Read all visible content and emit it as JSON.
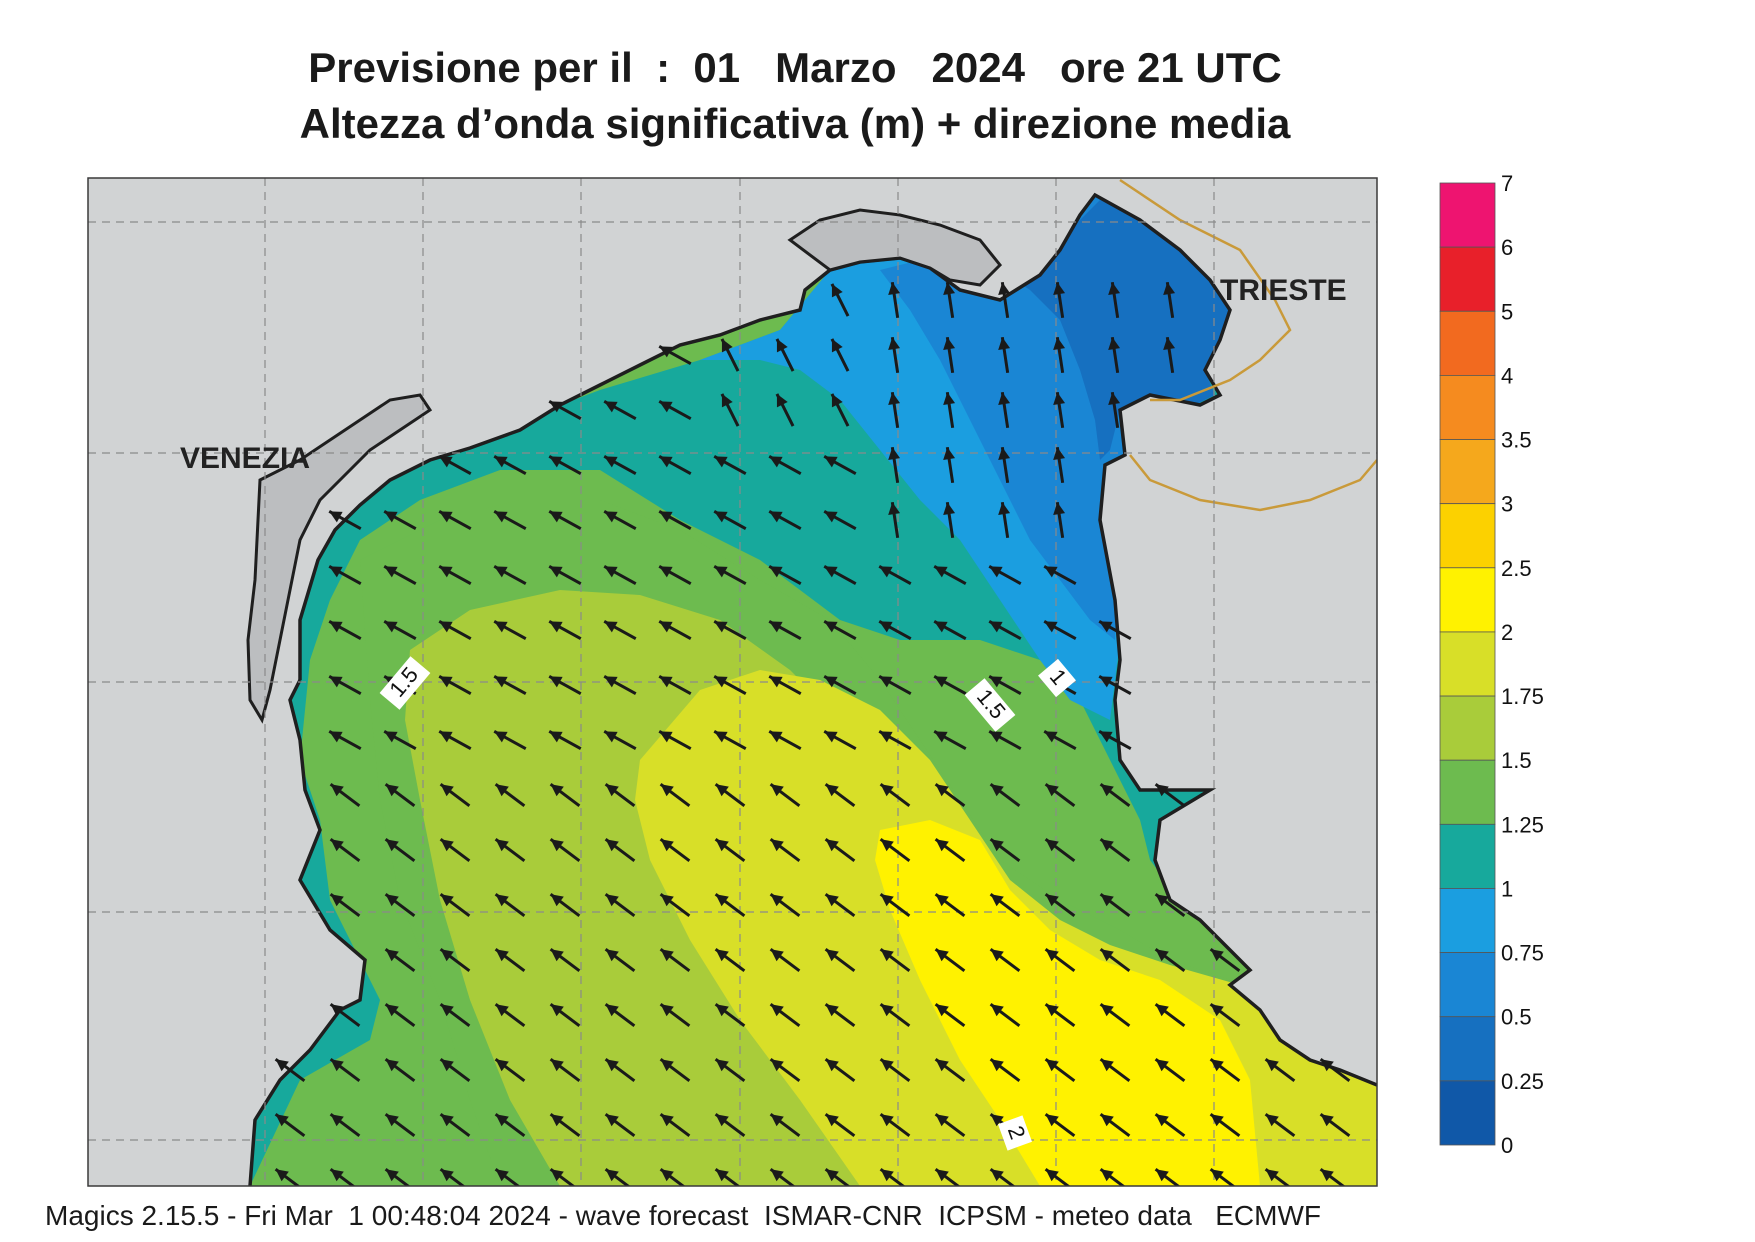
{
  "title": {
    "line1": "Previsione per il  :  01   Marzo   2024   ore 21 UTC",
    "line2": "Altezza d’onda significativa (m) + direzione media"
  },
  "cities": {
    "venezia": "VENEZIA",
    "trieste": "TRIESTE"
  },
  "contour_labels": [
    "1.5",
    "1.5",
    "1",
    "2"
  ],
  "legend": {
    "labels": [
      "7",
      "6",
      "5",
      "4",
      "3.5",
      "3",
      "2.5",
      "2",
      "1.75",
      "1.5",
      "1.25",
      "1",
      "0.75",
      "0.5",
      "0.25",
      "0"
    ],
    "colors": [
      "#ee1470",
      "#e8202a",
      "#f26a1f",
      "#f58b1f",
      "#f5a81c",
      "#fcd100",
      "#fff200",
      "#d8df28",
      "#a9cc3a",
      "#6dbb4f",
      "#17a99c",
      "#1b9ee0",
      "#1a86d4",
      "#1670c0",
      "#1058a8"
    ]
  },
  "colors": {
    "land": "#d1d3d4",
    "coast": "#1f1f1f",
    "border": "#c99a3a",
    "grid": "#8a8a8a",
    "arrow": "#1a1a1a"
  },
  "footer": "Magics 2.15.5 - Fri Mar  1 00:48:04 2024 - wave forecast  ISMAR-CNR  ICPSM - meteo data   ECMWF"
}
